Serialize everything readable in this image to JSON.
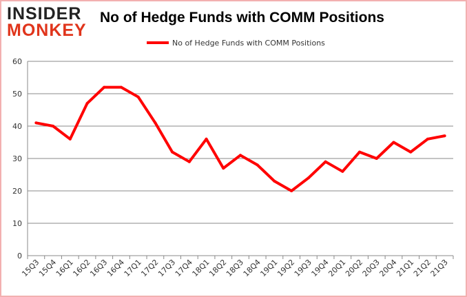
{
  "logo": {
    "line1": "INSIDER",
    "line2": "MONKEY"
  },
  "chart_data": {
    "type": "line",
    "title": "No of Hedge Funds with COMM Positions",
    "xlabel": "",
    "ylabel": "",
    "categories": [
      "15Q3",
      "15Q4",
      "16Q1",
      "16Q2",
      "16Q3",
      "16Q4",
      "17Q1",
      "17Q2",
      "17Q3",
      "17Q4",
      "18Q1",
      "18Q2",
      "18Q3",
      "18Q4",
      "19Q1",
      "19Q2",
      "19Q3",
      "19Q4",
      "20Q1",
      "20Q2",
      "20Q3",
      "20Q4",
      "21Q1",
      "21Q2",
      "21Q3"
    ],
    "series": [
      {
        "name": "No of Hedge Funds with COMM Positions",
        "color": "#ff0000",
        "values": [
          41,
          40,
          36,
          47,
          52,
          52,
          49,
          41,
          32,
          29,
          36,
          27,
          31,
          28,
          23,
          20,
          24,
          29,
          26,
          32,
          30,
          35,
          32,
          36,
          37
        ]
      }
    ],
    "ylim": [
      0,
      60
    ],
    "yticks": [
      0,
      10,
      20,
      30,
      40,
      50,
      60
    ],
    "grid": true,
    "legend": "top-center"
  }
}
